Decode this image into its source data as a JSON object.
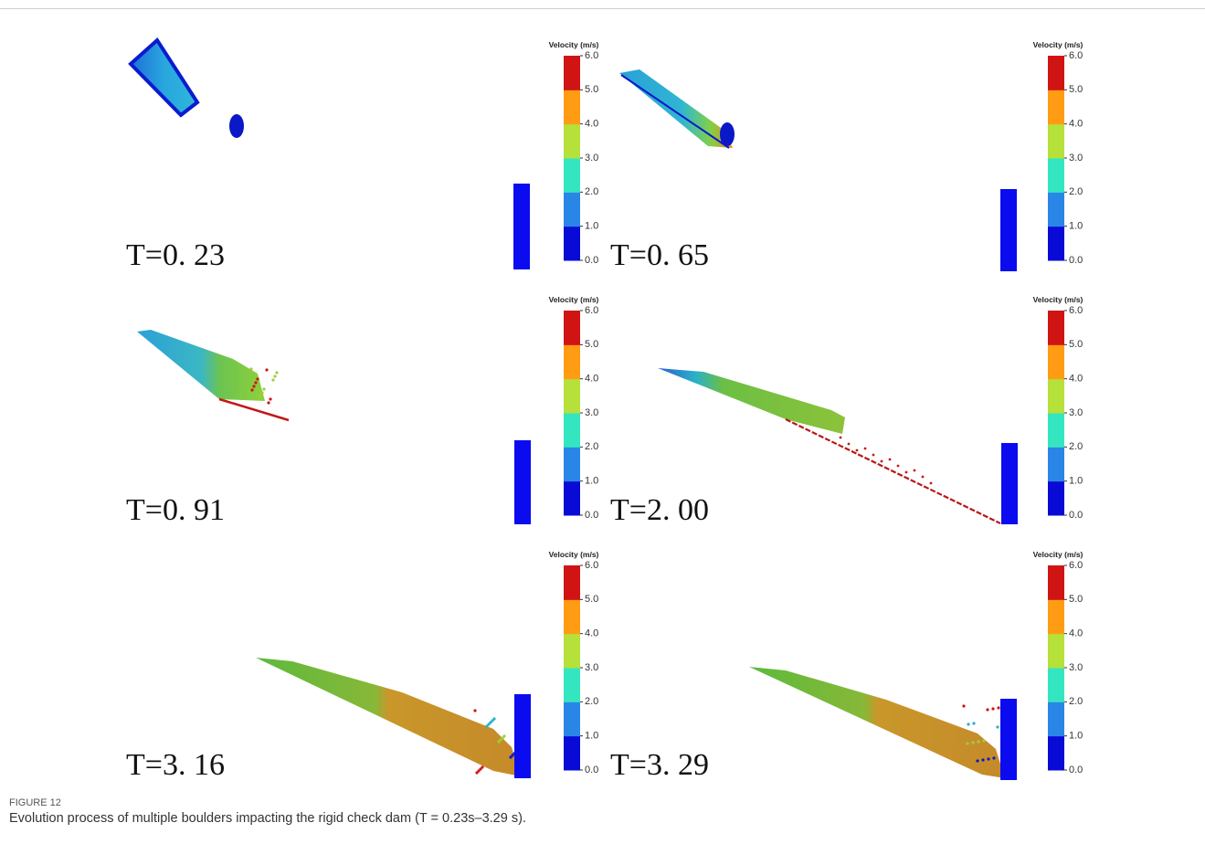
{
  "figure": {
    "label": "FIGURE 12",
    "caption": "Evolution process of multiple boulders impacting the rigid check dam (T = 0.23s–3.29 s).",
    "colorbar": {
      "title": "Velocity (m/s)",
      "ticks": [
        "0.0",
        "1.0",
        "2.0",
        "3.0",
        "4.0",
        "5.0",
        "6.0"
      ],
      "colors": [
        "#0a0ad6",
        "#2a86e6",
        "#34e6c0",
        "#b6e03a",
        "#ff9c14",
        "#d01414"
      ]
    },
    "panels": [
      {
        "time": "T=0. 23"
      },
      {
        "time": "T=0. 65"
      },
      {
        "time": "T=0. 91"
      },
      {
        "time": "T=2. 00"
      },
      {
        "time": "T=3. 16"
      },
      {
        "time": "T=3. 29"
      }
    ]
  }
}
